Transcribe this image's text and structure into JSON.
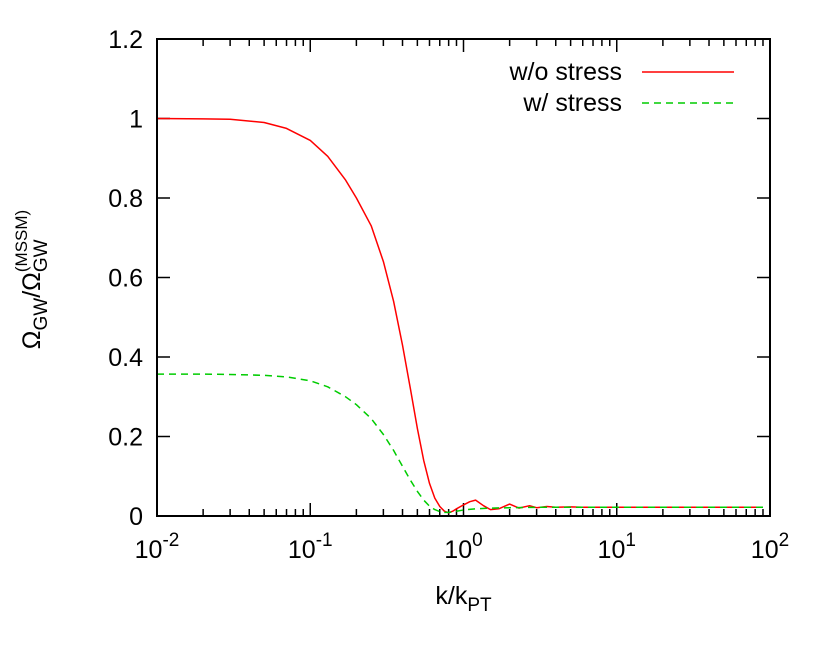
{
  "chart_data": {
    "type": "line",
    "title": "",
    "xlabel": {
      "main": "k/k",
      "sub": "PT"
    },
    "ylabel": {
      "omega": "Ω",
      "sub1": "GW",
      "slash": "/",
      "sub2": "GW",
      "sup2": "(MSSM)"
    },
    "x_scale": "log",
    "xlim": [
      0.01,
      100
    ],
    "ylim": [
      0,
      1.2
    ],
    "x_ticks": [
      {
        "value": 0.01,
        "base": "10",
        "exp": "-2"
      },
      {
        "value": 0.1,
        "base": "10",
        "exp": "-1"
      },
      {
        "value": 1,
        "base": "10",
        "exp": "0"
      },
      {
        "value": 10,
        "base": "10",
        "exp": "1"
      },
      {
        "value": 100,
        "base": "10",
        "exp": "2"
      }
    ],
    "y_ticks": [
      {
        "value": 0,
        "label": "0"
      },
      {
        "value": 0.2,
        "label": "0.2"
      },
      {
        "value": 0.4,
        "label": "0.4"
      },
      {
        "value": 0.6,
        "label": "0.6"
      },
      {
        "value": 0.8,
        "label": "0.8"
      },
      {
        "value": 1.0,
        "label": "1"
      },
      {
        "value": 1.2,
        "label": "1.2"
      }
    ],
    "grid": false,
    "legend_position": "top-right",
    "series": [
      {
        "name": "w/o stress",
        "color": "#ff0000",
        "dash": "solid",
        "x": [
          0.01,
          0.02,
          0.03,
          0.05,
          0.07,
          0.1,
          0.13,
          0.17,
          0.2,
          0.25,
          0.3,
          0.35,
          0.4,
          0.45,
          0.5,
          0.55,
          0.6,
          0.65,
          0.7,
          0.75,
          0.8,
          0.85,
          0.9,
          1.0,
          1.1,
          1.2,
          1.35,
          1.5,
          1.7,
          2.0,
          2.3,
          2.7,
          3.0,
          3.5,
          4.0,
          5.0,
          6.0,
          8.0,
          10,
          15,
          20,
          30,
          50,
          70,
          90
        ],
        "y": [
          1.0,
          0.999,
          0.998,
          0.99,
          0.975,
          0.945,
          0.905,
          0.845,
          0.8,
          0.73,
          0.64,
          0.54,
          0.43,
          0.32,
          0.22,
          0.14,
          0.082,
          0.045,
          0.024,
          0.012,
          0.008,
          0.012,
          0.018,
          0.028,
          0.036,
          0.04,
          0.026,
          0.016,
          0.018,
          0.03,
          0.02,
          0.026,
          0.021,
          0.024,
          0.022,
          0.023,
          0.022,
          0.022,
          0.022,
          0.022,
          0.022,
          0.022,
          0.022,
          0.022,
          0.022
        ]
      },
      {
        "name": "w/ stress",
        "color": "#00cc00",
        "dash": "dashed",
        "x": [
          0.01,
          0.02,
          0.03,
          0.05,
          0.07,
          0.1,
          0.13,
          0.17,
          0.2,
          0.25,
          0.3,
          0.35,
          0.4,
          0.45,
          0.5,
          0.55,
          0.6,
          0.65,
          0.7,
          0.75,
          0.8,
          0.85,
          0.9,
          1.0,
          1.2,
          1.5,
          2.0,
          3.0,
          5.0,
          10,
          20,
          50,
          90
        ],
        "y": [
          0.357,
          0.357,
          0.356,
          0.354,
          0.35,
          0.34,
          0.325,
          0.3,
          0.28,
          0.245,
          0.205,
          0.165,
          0.125,
          0.09,
          0.062,
          0.04,
          0.025,
          0.016,
          0.011,
          0.009,
          0.009,
          0.01,
          0.012,
          0.015,
          0.018,
          0.02,
          0.021,
          0.022,
          0.022,
          0.022,
          0.022,
          0.022,
          0.022
        ]
      }
    ]
  }
}
